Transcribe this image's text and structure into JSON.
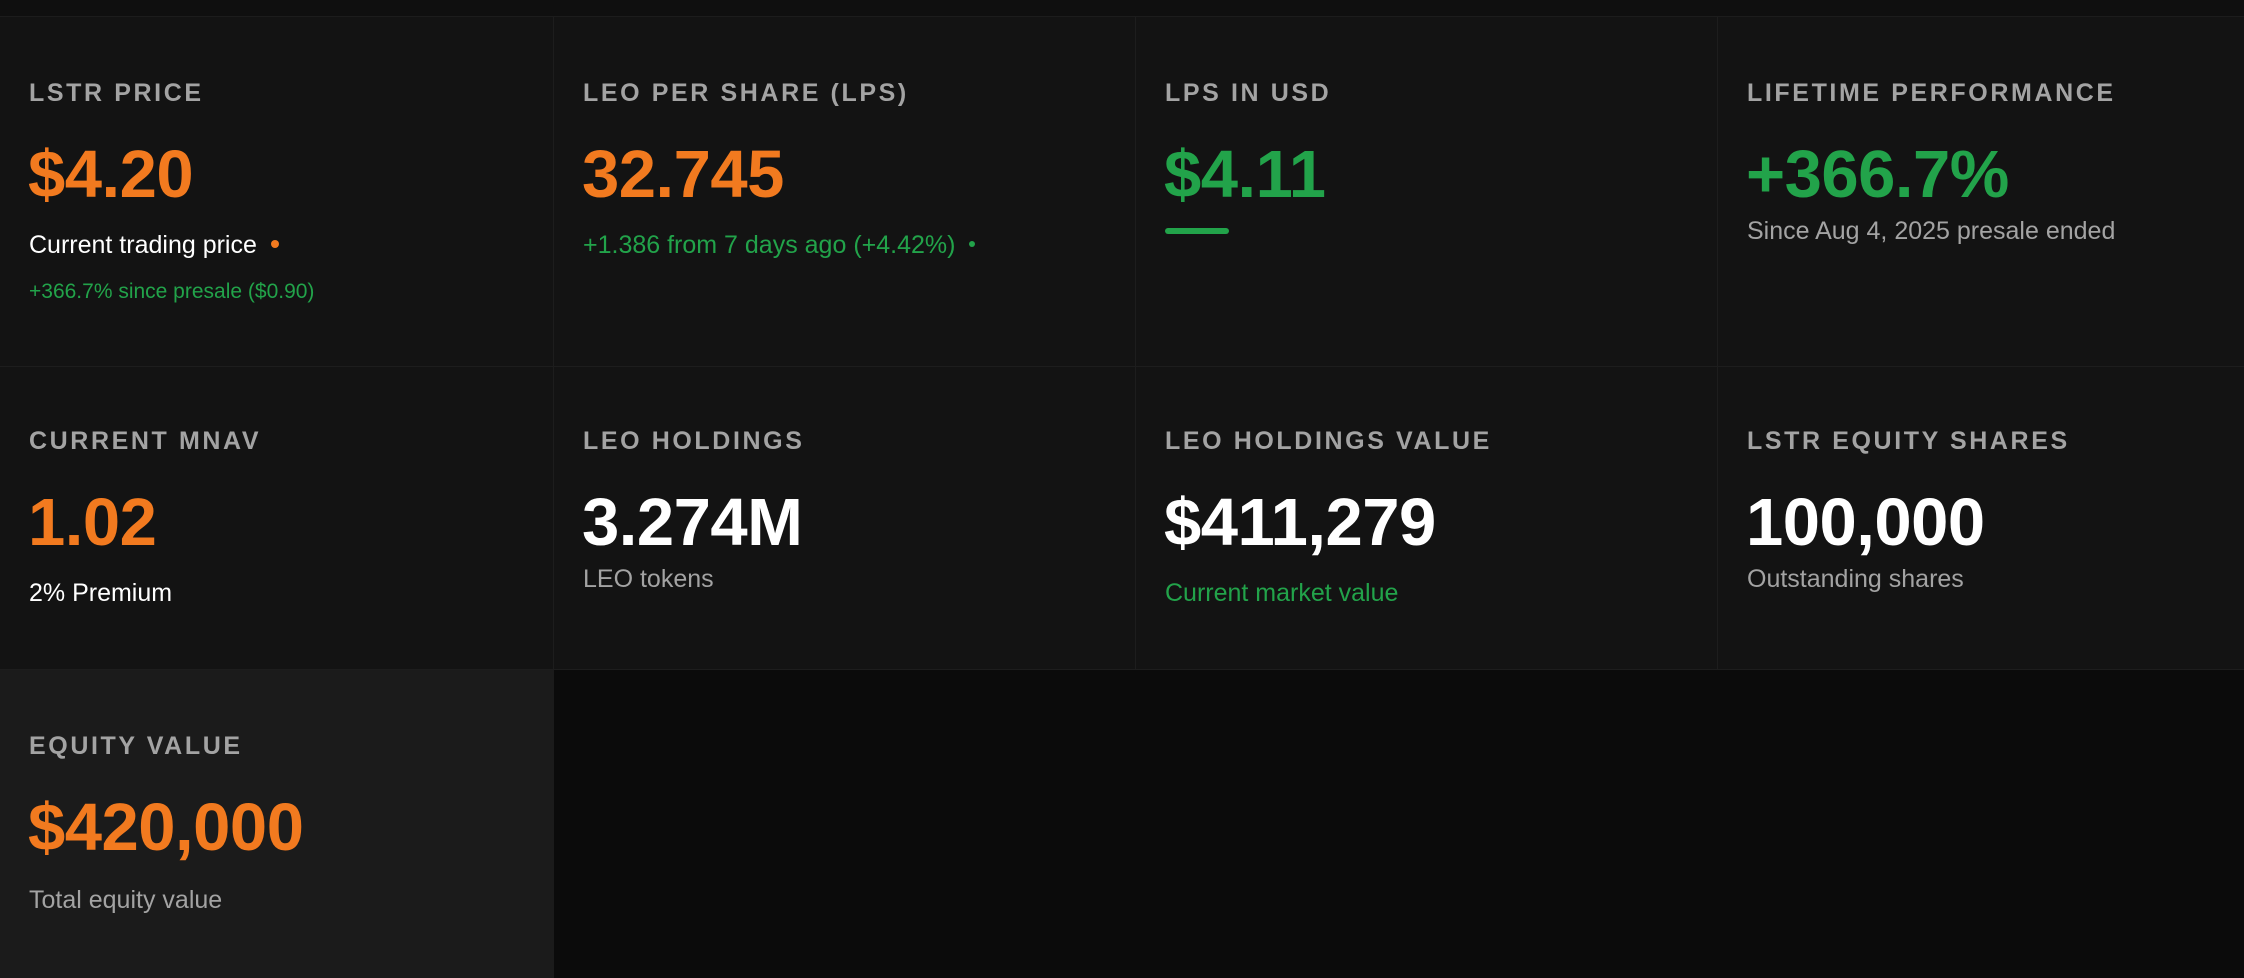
{
  "colors": {
    "accent_orange": "#f27a1f",
    "accent_green": "#22a34a",
    "label_gray": "#a3a3a3",
    "card_bg": "#131313",
    "highlight_bg": "#1b1b1b",
    "page_bg": "#0b0b0b"
  },
  "cards": {
    "lstr_price": {
      "label": "LSTR PRICE",
      "value": "$4.20",
      "sub": "Current trading price",
      "note": "+366.7% since presale ($0.90)"
    },
    "lps": {
      "label": "LEO PER SHARE (LPS)",
      "value": "32.745",
      "sub": "+1.386 from 7 days ago (+4.42%)"
    },
    "lps_usd": {
      "label": "LPS IN USD",
      "value": "$4.11"
    },
    "lifetime": {
      "label": "LIFETIME PERFORMANCE",
      "value": "+366.7%",
      "sub": "Since Aug 4, 2025 presale ended"
    },
    "mnav": {
      "label": "CURRENT MNAV",
      "value": "1.02",
      "sub": "2% Premium"
    },
    "holdings": {
      "label": "LEO HOLDINGS",
      "value": "3.274M",
      "sub": "LEO tokens"
    },
    "holdings_value": {
      "label": "LEO HOLDINGS VALUE",
      "value": "$411,279",
      "sub": "Current market value"
    },
    "equity_shares": {
      "label": "LSTR EQUITY SHARES",
      "value": "100,000",
      "sub": "Outstanding shares"
    },
    "equity_value": {
      "label": "EQUITY VALUE",
      "value": "$420,000",
      "sub": "Total equity value"
    }
  }
}
